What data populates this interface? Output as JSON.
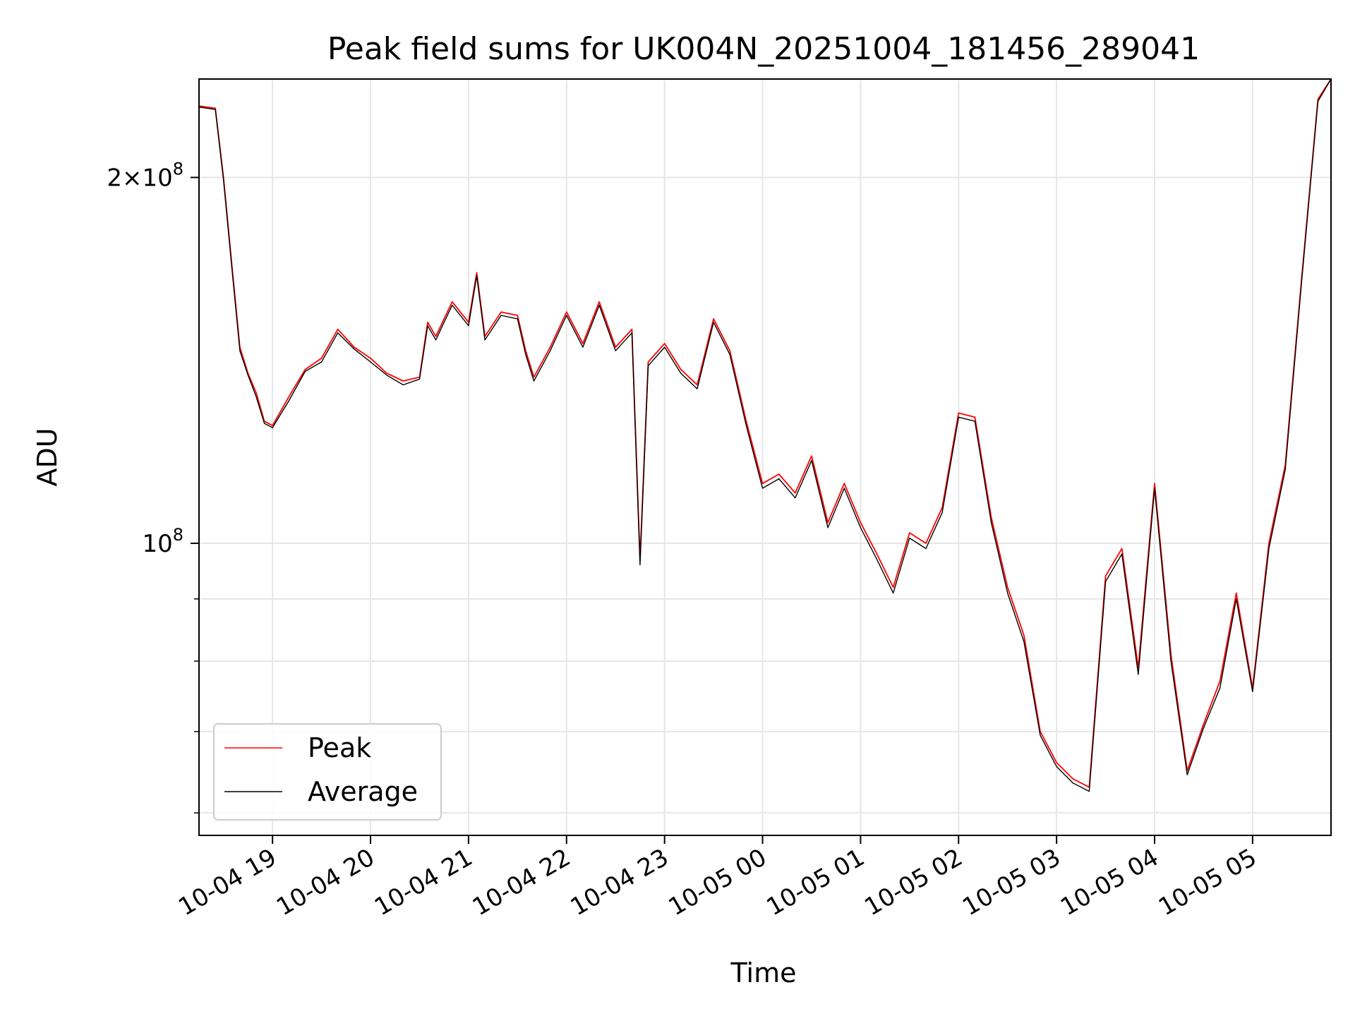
{
  "chart_data": {
    "type": "line",
    "title": "Peak field sums for UK004N_20251004_181456_289041",
    "xlabel": "Time",
    "ylabel": "ADU",
    "yscale": "log",
    "grid": true,
    "legend_position": "lower-left",
    "ylim": [
      57500000,
      241000000
    ],
    "xlim": [
      "2025-10-04 18:15",
      "2025-10-05 05:48"
    ],
    "x_ticks": [
      "10-04 19",
      "10-04 20",
      "10-04 21",
      "10-04 22",
      "10-04 23",
      "10-05 00",
      "10-05 01",
      "10-05 02",
      "10-05 03",
      "10-05 04",
      "10-05 05"
    ],
    "y_ticks": [
      {
        "value": 100000000,
        "label": "10",
        "exp": "8"
      },
      {
        "value": 200000000,
        "label": "2×10",
        "exp": "8"
      }
    ],
    "y_minor_ticks": [
      60000000,
      70000000,
      80000000,
      90000000
    ],
    "x": [
      "2025-10-04 18:15",
      "2025-10-04 18:25",
      "2025-10-04 18:30",
      "2025-10-04 18:35",
      "2025-10-04 18:40",
      "2025-10-04 18:45",
      "2025-10-04 18:50",
      "2025-10-04 18:55",
      "2025-10-04 19:00",
      "2025-10-04 19:10",
      "2025-10-04 19:20",
      "2025-10-04 19:30",
      "2025-10-04 19:40",
      "2025-10-04 19:50",
      "2025-10-04 20:00",
      "2025-10-04 20:10",
      "2025-10-04 20:20",
      "2025-10-04 20:30",
      "2025-10-04 20:35",
      "2025-10-04 20:40",
      "2025-10-04 20:45",
      "2025-10-04 20:50",
      "2025-10-04 21:00",
      "2025-10-04 21:05",
      "2025-10-04 21:10",
      "2025-10-04 21:20",
      "2025-10-04 21:30",
      "2025-10-04 21:35",
      "2025-10-04 21:40",
      "2025-10-04 21:50",
      "2025-10-04 22:00",
      "2025-10-04 22:10",
      "2025-10-04 22:20",
      "2025-10-04 22:30",
      "2025-10-04 22:40",
      "2025-10-04 22:45",
      "2025-10-04 22:50",
      "2025-10-04 23:00",
      "2025-10-04 23:10",
      "2025-10-04 23:20",
      "2025-10-04 23:30",
      "2025-10-04 23:40",
      "2025-10-04 23:50",
      "2025-10-05 00:00",
      "2025-10-05 00:10",
      "2025-10-05 00:20",
      "2025-10-05 00:30",
      "2025-10-05 00:40",
      "2025-10-05 00:50",
      "2025-10-05 01:00",
      "2025-10-05 01:10",
      "2025-10-05 01:20",
      "2025-10-05 01:30",
      "2025-10-05 01:40",
      "2025-10-05 01:50",
      "2025-10-05 02:00",
      "2025-10-05 02:10",
      "2025-10-05 02:20",
      "2025-10-05 02:30",
      "2025-10-05 02:40",
      "2025-10-05 02:50",
      "2025-10-05 03:00",
      "2025-10-05 03:10",
      "2025-10-05 03:20",
      "2025-10-05 03:30",
      "2025-10-05 03:40",
      "2025-10-05 03:50",
      "2025-10-05 04:00",
      "2025-10-05 04:10",
      "2025-10-05 04:20",
      "2025-10-05 04:30",
      "2025-10-05 04:40",
      "2025-10-05 04:50",
      "2025-10-05 05:00",
      "2025-10-05 05:10",
      "2025-10-05 05:20",
      "2025-10-05 05:30",
      "2025-10-05 05:40",
      "2025-10-05 05:48"
    ],
    "series": [
      {
        "name": "Peak",
        "color": "#ff0000",
        "values": [
          229000000,
          228000000,
          200000000,
          170000000,
          145000000,
          138000000,
          133000000,
          126000000,
          125000000,
          132000000,
          139000000,
          142000000,
          150000000,
          145000000,
          142000000,
          138000000,
          136000000,
          137000000,
          152000000,
          148000000,
          153000000,
          158000000,
          152000000,
          167000000,
          148000000,
          155000000,
          154000000,
          144000000,
          137000000,
          145000000,
          155000000,
          146000000,
          158000000,
          145000000,
          150000000,
          97000000,
          141000000,
          146000000,
          139000000,
          135000000,
          153000000,
          144000000,
          126000000,
          112000000,
          114000000,
          110000000,
          118000000,
          104000000,
          112000000,
          104000000,
          98000000,
          92000000,
          102000000,
          100000000,
          107000000,
          128000000,
          127000000,
          105000000,
          92000000,
          84000000,
          70000000,
          66000000,
          64000000,
          63000000,
          94000000,
          99000000,
          79000000,
          112000000,
          81000000,
          65000000,
          71000000,
          77000000,
          91000000,
          76000000,
          100000000,
          116000000,
          165000000,
          232000000,
          241000000
        ]
      },
      {
        "name": "Average",
        "color": "#000000",
        "values": [
          228500000,
          227500000,
          199000000,
          169000000,
          144000000,
          137500000,
          132000000,
          125500000,
          124500000,
          131000000,
          138500000,
          141000000,
          149000000,
          144500000,
          141000000,
          137500000,
          135000000,
          136500000,
          151000000,
          147000000,
          152000000,
          157000000,
          151000000,
          166000000,
          147000000,
          154000000,
          153000000,
          143000000,
          136000000,
          144000000,
          154000000,
          145000000,
          157000000,
          144000000,
          149000000,
          96000000,
          140000000,
          145000000,
          138000000,
          134000000,
          152000000,
          143000000,
          125000000,
          111000000,
          113000000,
          109000000,
          117000000,
          103000000,
          111000000,
          103000000,
          97000000,
          91000000,
          101000000,
          99000000,
          106000000,
          127000000,
          126000000,
          104000000,
          91000000,
          83000000,
          69500000,
          65500000,
          63500000,
          62500000,
          93000000,
          98000000,
          78000000,
          111000000,
          80000000,
          64500000,
          70500000,
          76000000,
          90000000,
          75500000,
          99000000,
          115000000,
          164000000,
          231000000,
          241000000
        ]
      }
    ]
  }
}
